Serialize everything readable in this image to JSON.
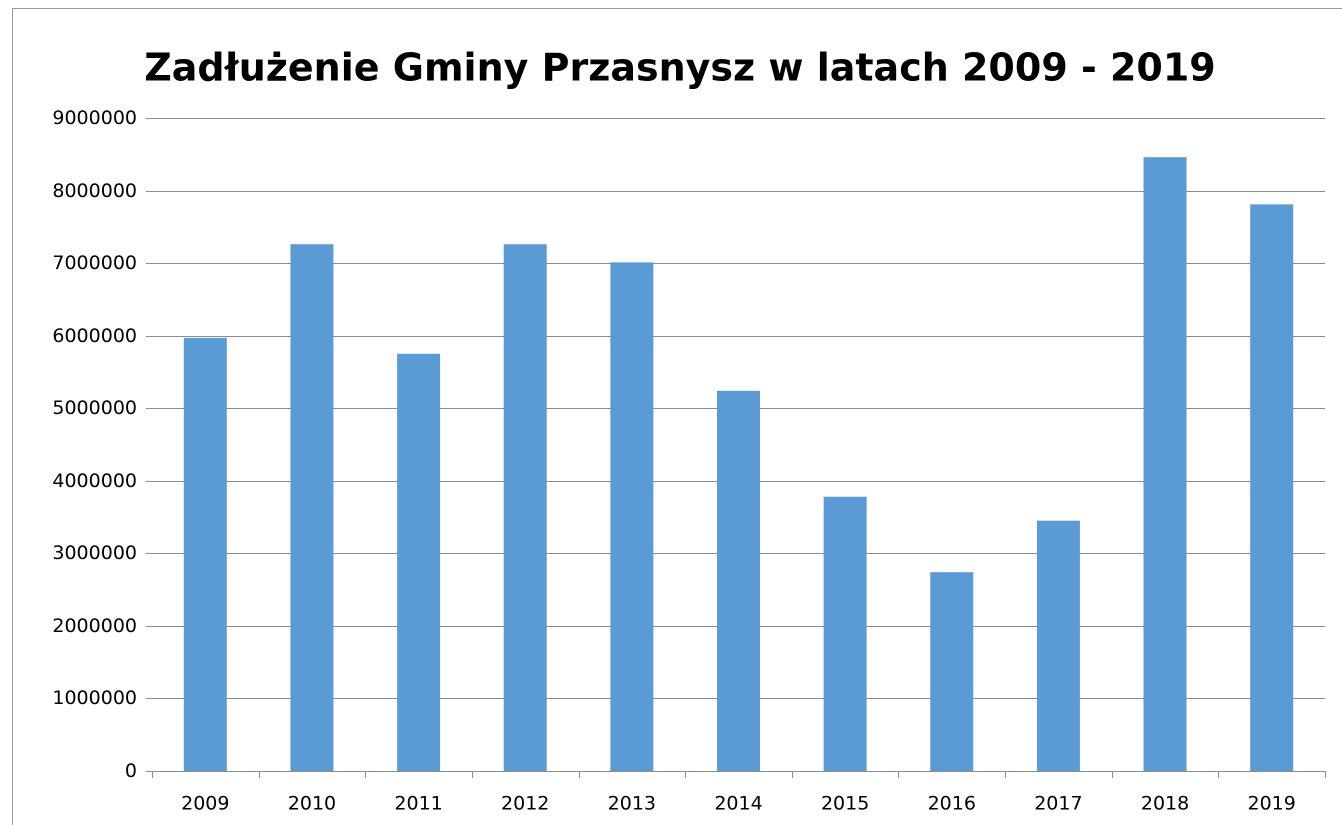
{
  "chart_data": {
    "type": "bar",
    "title": "Zadłużenie Gminy Przasnysz w latach 2009 - 2019",
    "categories": [
      "2009",
      "2010",
      "2011",
      "2012",
      "2013",
      "2014",
      "2015",
      "2016",
      "2017",
      "2018",
      "2019"
    ],
    "values": [
      5970000,
      7260000,
      5750000,
      7260000,
      7010000,
      5240000,
      3780000,
      2740000,
      3450000,
      8460000,
      7810000
    ],
    "color": "#5b9bd5",
    "ylim": [
      0,
      9000000
    ],
    "yticks": [
      0,
      1000000,
      2000000,
      3000000,
      4000000,
      5000000,
      6000000,
      7000000,
      8000000,
      9000000
    ],
    "grid": true
  }
}
